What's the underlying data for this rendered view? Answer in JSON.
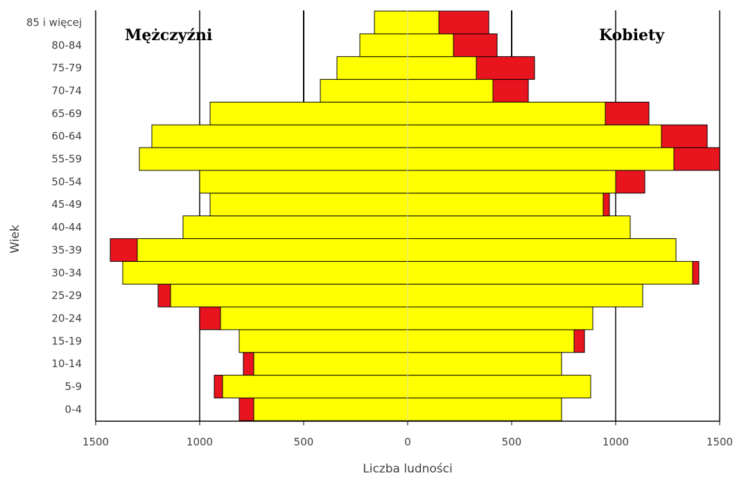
{
  "chart_data": {
    "type": "bar",
    "orientation": "horizontal",
    "layout": "population-pyramid",
    "ylabel": "Wiek",
    "xlabel": "Liczba ludności",
    "xlim": [
      -1500,
      1500
    ],
    "x_ticks": [
      -1500,
      -1000,
      -500,
      0,
      500,
      1000,
      1500
    ],
    "x_tick_labels": [
      "1500",
      "1000",
      "500",
      "0",
      "500",
      "1000",
      "1500"
    ],
    "grid": "vertical",
    "gender_labels": {
      "left": "Mężczyźni",
      "right": "Kobiety"
    },
    "categories": [
      "0-4",
      "5-9",
      "10-14",
      "15-19",
      "20-24",
      "25-29",
      "30-34",
      "35-39",
      "40-44",
      "45-49",
      "50-54",
      "55-59",
      "60-64",
      "65-69",
      "70-74",
      "75-79",
      "80-84",
      "85 i więcej"
    ],
    "series": [
      {
        "side": "left",
        "part": "base",
        "color": "#ffff00",
        "values": [
          740,
          890,
          740,
          810,
          900,
          1140,
          1370,
          1300,
          1080,
          950,
          1000,
          1290,
          1230,
          950,
          420,
          340,
          230,
          160
        ]
      },
      {
        "side": "left",
        "part": "excess",
        "color": "#e8141e",
        "values": [
          70,
          40,
          50,
          0,
          100,
          60,
          0,
          130,
          0,
          0,
          0,
          0,
          0,
          0,
          0,
          0,
          0,
          0
        ]
      },
      {
        "side": "right",
        "part": "base",
        "color": "#ffff00",
        "values": [
          740,
          880,
          740,
          800,
          890,
          1130,
          1370,
          1290,
          1070,
          940,
          1000,
          1280,
          1220,
          950,
          410,
          330,
          220,
          150
        ]
      },
      {
        "side": "right",
        "part": "excess",
        "color": "#e8141e",
        "values": [
          0,
          0,
          0,
          50,
          0,
          0,
          30,
          0,
          0,
          30,
          140,
          220,
          220,
          210,
          170,
          280,
          210,
          240
        ]
      }
    ]
  }
}
